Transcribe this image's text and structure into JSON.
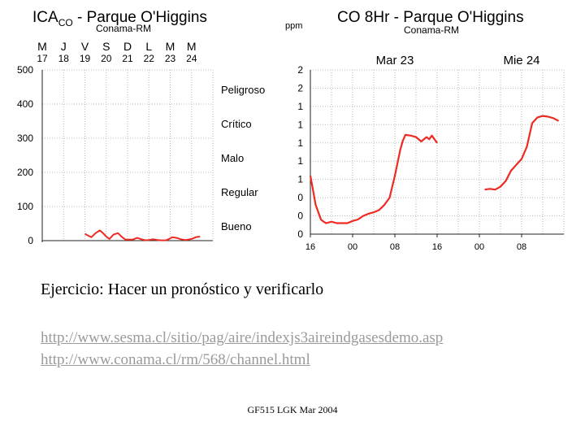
{
  "captions": {
    "exercise": "Ejercicio: Hacer un pronóstico y verificarlo",
    "link1": "http://www.sesma.cl/sitio/pag/aire/indexjs3aireindgasesdemo.asp",
    "link2": "http://www.conama.cl/rm/568/channel.html",
    "footer": "GF515 LGK Mar 2004"
  },
  "colors": {
    "series": "#ee2a22",
    "grid": "#bbbbbb",
    "axis": "#222222"
  },
  "chart_data": [
    {
      "type": "line",
      "title_main": "ICA",
      "title_sub": "CO",
      "title_rest": " - Parque O'Higgins",
      "subtitle": "Conama-RM",
      "day_letters": [
        "M",
        "J",
        "V",
        "S",
        "D",
        "L",
        "M",
        "M"
      ],
      "day_numbers": [
        "17",
        "18",
        "19",
        "20",
        "21",
        "22",
        "23",
        "24"
      ],
      "y_ticks": [
        "500",
        "400",
        "300",
        "200",
        "100",
        "0"
      ],
      "y_tick_values": [
        500,
        400,
        300,
        200,
        100,
        0
      ],
      "ylim": [
        0,
        500
      ],
      "xlim": [
        17,
        25
      ],
      "categories": [
        "Peligroso",
        "Crítico",
        "Malo",
        "Regular",
        "Bueno"
      ],
      "category_levels": [
        440,
        340,
        240,
        140,
        40
      ],
      "grid": true,
      "series": [
        {
          "x": [
            19.0,
            19.15,
            19.3,
            19.5,
            19.7,
            19.85,
            20.0,
            20.15,
            20.35,
            20.55,
            20.75,
            20.9,
            21.05,
            21.25,
            21.45,
            21.65,
            21.85,
            22.0,
            22.2,
            22.4,
            22.6,
            22.8,
            22.95,
            23.1,
            23.3,
            23.5,
            23.7,
            23.85,
            24.0,
            24.2,
            24.4
          ],
          "y": [
            20,
            15,
            10,
            22,
            30,
            22,
            12,
            5,
            18,
            22,
            10,
            3,
            3,
            3,
            8,
            4,
            1,
            2,
            4,
            2,
            1,
            1,
            5,
            10,
            8,
            4,
            2,
            3,
            5,
            10,
            12
          ]
        }
      ]
    },
    {
      "type": "line",
      "title": "CO 8Hr - Parque O'Higgins",
      "subtitle": "Conama-RM",
      "ylabel": "ppm",
      "y_ticks": [
        "2",
        "2",
        "1",
        "1",
        "1",
        "1",
        "1",
        "0",
        "0",
        "0"
      ],
      "y_tick_values": [
        2.0,
        1.75,
        1.5,
        1.25,
        1.0,
        0.75,
        0.5,
        0.25,
        0.0,
        -0.25
      ],
      "ylim": [
        -0.25,
        2.0
      ],
      "x_ticks": [
        "16",
        "00",
        "08",
        "16",
        "00",
        "08"
      ],
      "x_tick_values": [
        16,
        24,
        32,
        40,
        48,
        56
      ],
      "xlim": [
        16,
        64
      ],
      "day_labels": [
        {
          "text": "Mar 23",
          "x": 32
        },
        {
          "text": "Mie 24",
          "x": 56
        }
      ],
      "grid": true,
      "series": [
        {
          "x": [
            16,
            16.5,
            17,
            17.5,
            18,
            18.5,
            19,
            20,
            21,
            22,
            23,
            24,
            25,
            26,
            27,
            28,
            29,
            30,
            31,
            32,
            33,
            33.5,
            34,
            35,
            36,
            37,
            38,
            38.5,
            39,
            40
          ],
          "y": [
            0.55,
            0.35,
            0.15,
            0.05,
            -0.05,
            -0.08,
            -0.1,
            -0.08,
            -0.1,
            -0.1,
            -0.1,
            -0.07,
            -0.05,
            0.0,
            0.03,
            0.05,
            0.08,
            0.15,
            0.25,
            0.55,
            0.9,
            1.03,
            1.11,
            1.1,
            1.08,
            1.02,
            1.08,
            1.05,
            1.1,
            1.0
          ]
        },
        {
          "x": [
            49,
            50,
            51,
            52,
            53,
            54,
            55,
            56,
            57,
            58,
            59,
            60,
            61,
            62,
            63
          ],
          "y": [
            0.36,
            0.37,
            0.36,
            0.4,
            0.48,
            0.62,
            0.7,
            0.78,
            0.95,
            1.27,
            1.35,
            1.37,
            1.36,
            1.34,
            1.3
          ]
        }
      ]
    }
  ]
}
